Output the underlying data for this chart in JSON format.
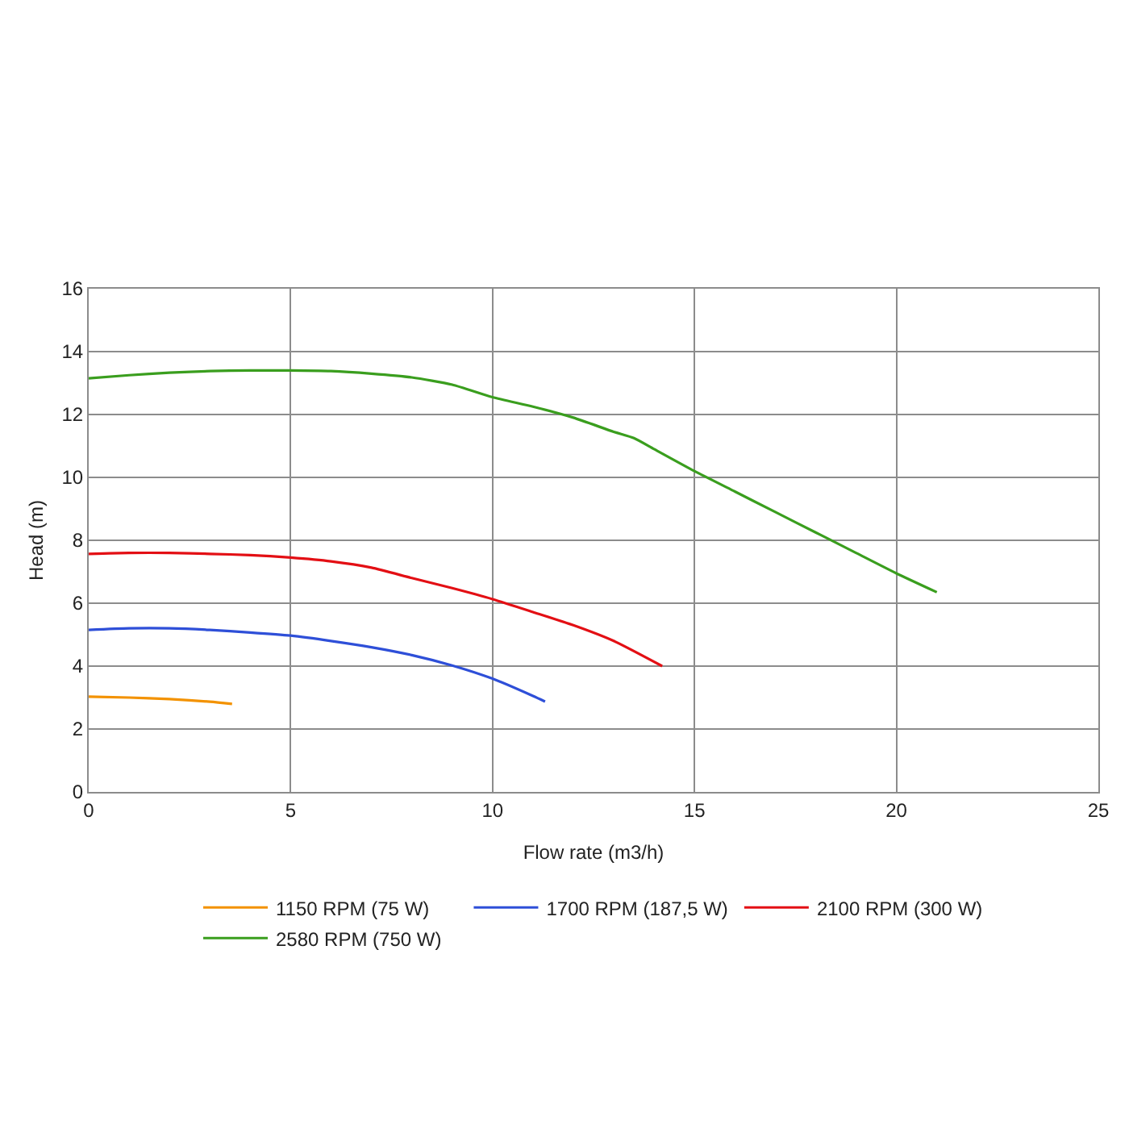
{
  "chart_data": {
    "type": "line",
    "xlabel": "Flow rate (m3/h)",
    "ylabel": "Head (m)",
    "xlim": [
      0,
      25
    ],
    "xticks": [
      0,
      5,
      10,
      15,
      20,
      25
    ],
    "ylim": [
      0,
      16
    ],
    "yticks": [
      0,
      2,
      4,
      6,
      8,
      10,
      12,
      14,
      16
    ],
    "grid": true,
    "legend": "bottom",
    "marker": "none",
    "line_style": "solid",
    "series": [
      {
        "name": "1150 RPM (75 W)",
        "color": "#f39200",
        "x": [
          0,
          1,
          2,
          3,
          3.55
        ],
        "values": [
          3.03,
          3.0,
          2.95,
          2.87,
          2.8
        ]
      },
      {
        "name": "1700 RPM (187,5 W)",
        "color": "#2e4fd8",
        "x": [
          0,
          1,
          2,
          3,
          4,
          5,
          6,
          7,
          8,
          9,
          10,
          11,
          11.3
        ],
        "values": [
          5.15,
          5.2,
          5.2,
          5.15,
          5.07,
          4.97,
          4.8,
          4.6,
          4.35,
          4.02,
          3.6,
          3.05,
          2.87
        ]
      },
      {
        "name": "2100 RPM (300 W)",
        "color": "#e30f14",
        "x": [
          0,
          1,
          2,
          3,
          4,
          5,
          6,
          7,
          8,
          9,
          10,
          11,
          12,
          13,
          14.2
        ],
        "values": [
          7.57,
          7.6,
          7.6,
          7.57,
          7.53,
          7.45,
          7.33,
          7.13,
          6.8,
          6.48,
          6.13,
          5.72,
          5.3,
          4.8,
          4.0
        ]
      },
      {
        "name": "2580 RPM (750 W)",
        "color": "#3a9e1e",
        "x": [
          0,
          1,
          2,
          3,
          4,
          5,
          6,
          7,
          8,
          9,
          10,
          11,
          12,
          13,
          13.5,
          14,
          15,
          16,
          17,
          18,
          19,
          20,
          21
        ],
        "values": [
          13.15,
          13.25,
          13.33,
          13.38,
          13.4,
          13.4,
          13.38,
          13.3,
          13.18,
          12.95,
          12.55,
          12.25,
          11.9,
          11.45,
          11.25,
          10.9,
          10.2,
          9.55,
          8.9,
          8.25,
          7.6,
          6.95,
          6.35
        ]
      }
    ]
  }
}
